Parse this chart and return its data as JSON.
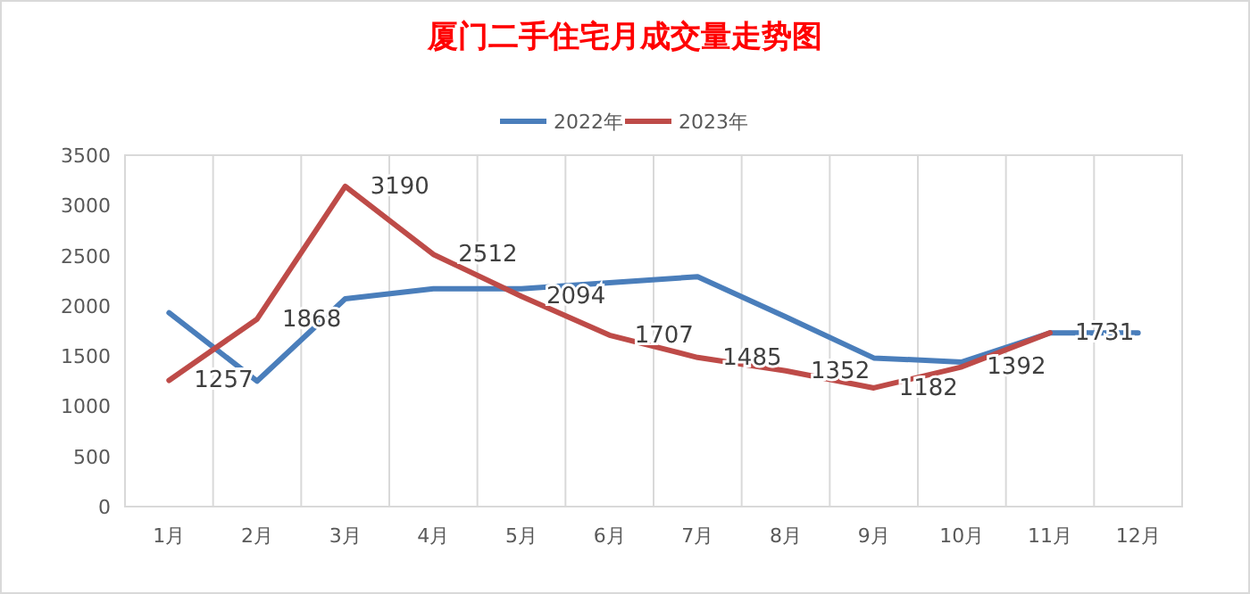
{
  "chart_data": {
    "type": "line",
    "title": "厦门二手住宅月成交量走势图",
    "categories": [
      "1月",
      "2月",
      "3月",
      "4月",
      "5月",
      "6月",
      "7月",
      "8月",
      "9月",
      "10月",
      "11月",
      "12月"
    ],
    "series": [
      {
        "name": "2022年",
        "color": "#4a7ebb",
        "values": [
          1930,
          1250,
          2070,
          2170,
          2170,
          2230,
          2290,
          1890,
          1480,
          1440,
          1730,
          1730
        ]
      },
      {
        "name": "2023年",
        "color": "#be4b48",
        "values": [
          1257,
          1868,
          3190,
          2512,
          2094,
          1707,
          1485,
          1352,
          1182,
          1392,
          1731,
          null
        ],
        "value_labels": [
          "1257",
          "1868",
          "3190",
          "2512",
          "2094",
          "1707",
          "1485",
          "1352",
          "1182",
          "1392",
          "1731",
          null
        ]
      }
    ],
    "ylim": [
      0,
      3500
    ],
    "yticks": [
      0,
      500,
      1000,
      1500,
      2000,
      2500,
      3000,
      3500
    ],
    "grid": "x",
    "legend": "top",
    "marker": "none",
    "line_style": "solid"
  }
}
